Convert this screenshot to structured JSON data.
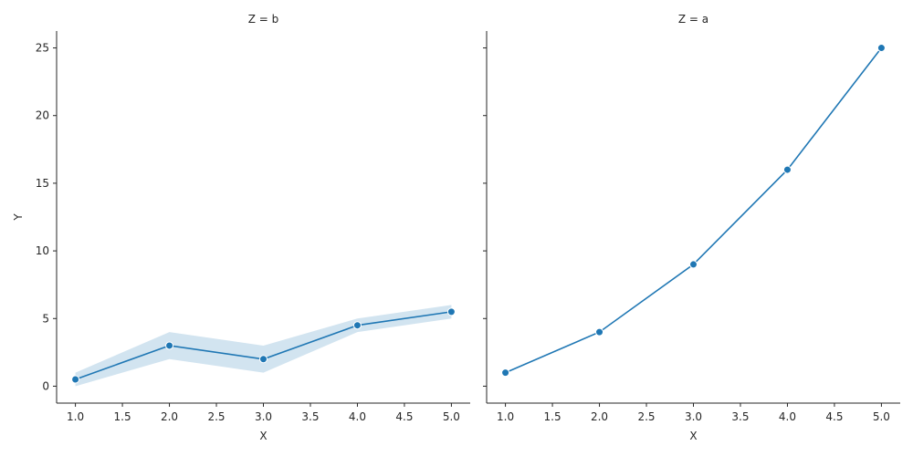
{
  "chart_data": {
    "type": "line",
    "shared_y": true,
    "ylabel": "Y",
    "colors": {
      "line": "#1f77b4",
      "band": "#1f77b4",
      "axis": "#262626"
    },
    "panels": [
      {
        "title": "Z = b",
        "xlabel": "X",
        "xlim": [
          0.8,
          5.2
        ],
        "ylim": [
          -1.25,
          26.25
        ],
        "x_ticks": [
          "1.0",
          "1.5",
          "2.0",
          "2.5",
          "3.0",
          "3.5",
          "4.0",
          "4.5",
          "5.0"
        ],
        "y_ticks": [
          "0",
          "5",
          "10",
          "15",
          "20",
          "25"
        ],
        "x": [
          1,
          2,
          3,
          4,
          5
        ],
        "y": [
          0.5,
          3,
          2,
          4.5,
          5.5
        ],
        "ci_low": [
          0,
          2,
          1,
          4,
          5
        ],
        "ci_high": [
          1,
          4,
          3,
          5,
          6
        ]
      },
      {
        "title": "Z = a",
        "xlabel": "X",
        "xlim": [
          0.8,
          5.2
        ],
        "ylim": [
          -1.25,
          26.25
        ],
        "x_ticks": [
          "1.0",
          "1.5",
          "2.0",
          "2.5",
          "3.0",
          "3.5",
          "4.0",
          "4.5",
          "5.0"
        ],
        "y_ticks": [
          "0",
          "5",
          "10",
          "15",
          "20",
          "25"
        ],
        "x": [
          1,
          2,
          3,
          4,
          5
        ],
        "y": [
          1,
          4,
          9,
          16,
          25
        ]
      }
    ]
  }
}
